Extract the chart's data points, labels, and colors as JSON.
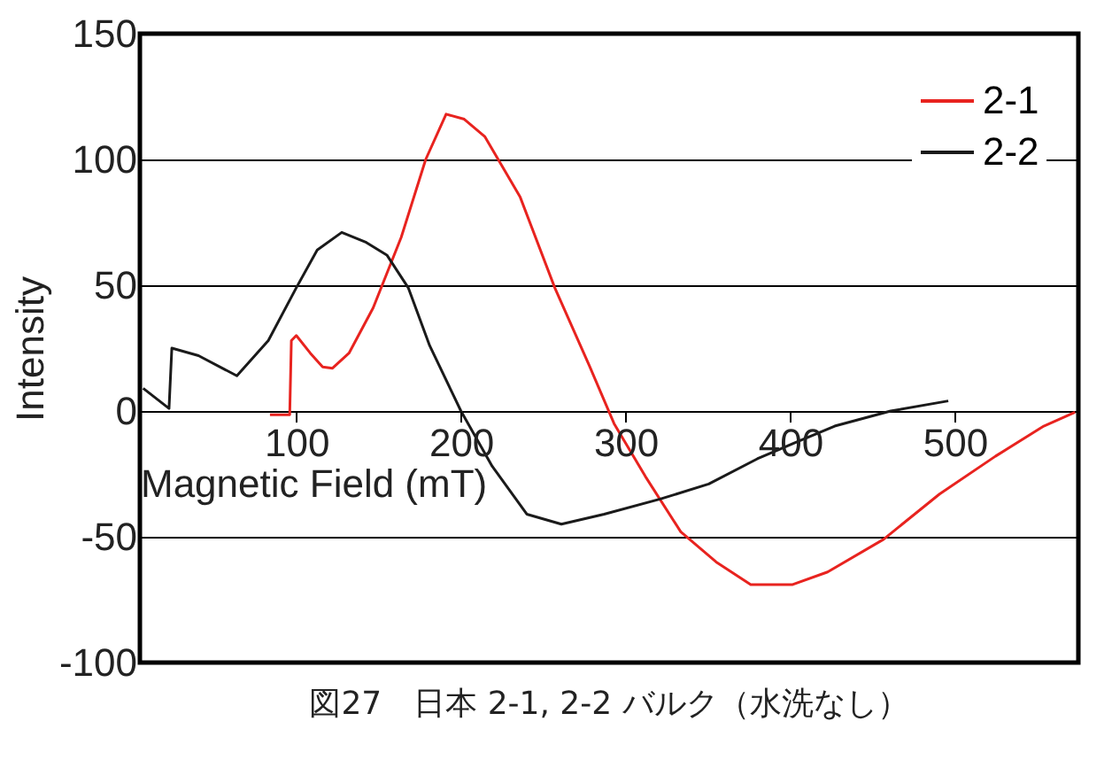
{
  "chart_data": {
    "type": "line",
    "xlabel": "Magnetic Field (mT)",
    "ylabel": "Intensity",
    "annotations": [
      "図27　日本 2-1, 2-2 バルク（水洗なし）"
    ],
    "xlim": [
      5,
      575
    ],
    "xticks": [
      100,
      200,
      300,
      400,
      500
    ],
    "ylim": [
      -100,
      150
    ],
    "yticks": [
      -100,
      -50,
      0,
      50,
      100,
      150
    ],
    "grid": "y",
    "legend": "top right",
    "line_style": "solid",
    "marker": "none",
    "series": [
      {
        "name": "2-1",
        "color": "#e8231f",
        "x": [
          84,
          96,
          97,
          100,
          108.5,
          116,
          122,
          132,
          146.7,
          163.7,
          178.6,
          191,
          202,
          214.6,
          236,
          257,
          278,
          293,
          312,
          333.5,
          355,
          376,
          401.5,
          422.7,
          456.7,
          490.7,
          524.6,
          554,
          573
        ],
        "values": [
          -1.5,
          -1.5,
          28,
          30,
          23,
          17.5,
          17,
          23,
          41,
          69,
          100,
          118,
          116,
          109,
          85,
          49,
          18,
          -5,
          -26,
          -48,
          -60,
          -69,
          -69,
          -64,
          -51,
          -33,
          -18,
          -6,
          -0.5
        ]
      },
      {
        "name": "2-2",
        "color": "#1a1a1a",
        "x": [
          7,
          22.7,
          24.4,
          40.6,
          63.9,
          83,
          100,
          112.7,
          127.6,
          142.5,
          155,
          168,
          181,
          200,
          219,
          240,
          261,
          287,
          321,
          350.5,
          380,
          401.5,
          427,
          461,
          496
        ],
        "values": [
          9,
          1,
          25,
          22,
          14,
          28,
          49,
          64,
          71,
          67,
          62,
          49,
          26,
          0,
          -22,
          -41,
          -45,
          -41,
          -35,
          -29,
          -19,
          -13,
          -6,
          0,
          4
        ]
      }
    ]
  }
}
